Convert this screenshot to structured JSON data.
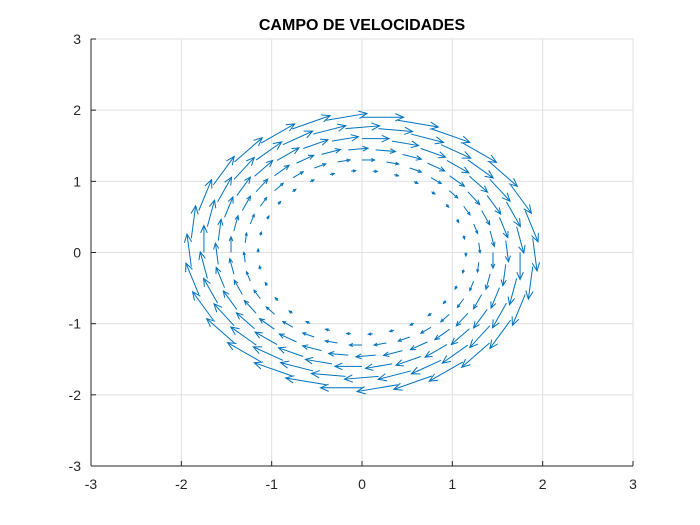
{
  "chart_data": {
    "type": "quiver",
    "title": "CAMPO DE VELOCIDADES",
    "xlabel": "",
    "ylabel": "",
    "xlim": [
      -3,
      3
    ],
    "ylim": [
      -3,
      3
    ],
    "xticks": [
      "-3",
      "-2",
      "-1",
      "0",
      "1",
      "2",
      "3"
    ],
    "yticks": [
      "-3",
      "-2",
      "-1",
      "0",
      "1",
      "2",
      "3"
    ],
    "grid": true,
    "arrow_color": "#0072BD",
    "field": {
      "description_of_values": "Rotational velocity field on an annulus centered at (0,0); arrows tangent, clockwise, magnitude increasing with radius",
      "radii": [
        1.15,
        1.3,
        1.45,
        1.6,
        1.75,
        1.9
      ],
      "angles_deg": [
        0,
        12,
        24,
        36,
        48,
        60,
        72,
        84,
        96,
        108,
        120,
        132,
        144,
        156,
        168,
        180,
        192,
        204,
        216,
        228,
        240,
        252,
        264,
        276,
        288,
        300,
        312,
        324,
        336,
        348
      ],
      "speed_per_radius": [
        0.05,
        0.14,
        0.22,
        0.3,
        0.38,
        0.46
      ],
      "rotation": "clockwise"
    }
  }
}
